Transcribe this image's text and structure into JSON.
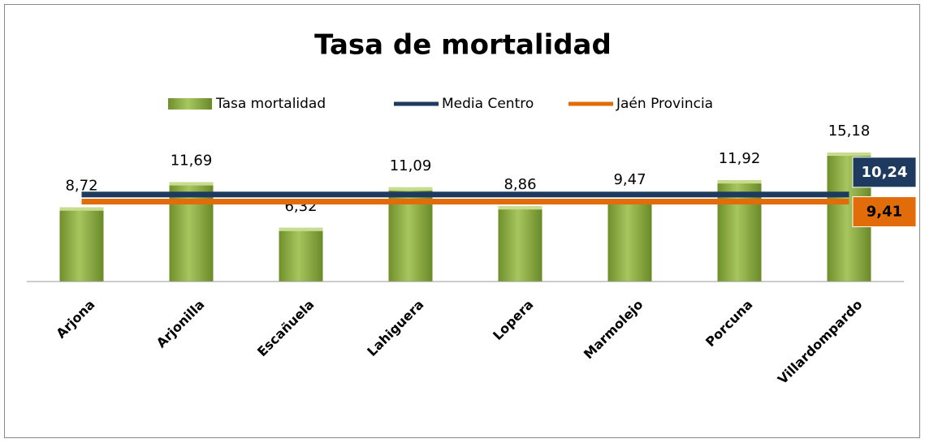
{
  "chart_data": {
    "type": "bar",
    "title": "Tasa de mortalidad",
    "categories": [
      "Arjona",
      "Arjonilla",
      "Escañuela",
      "Lahiguera",
      "Lopera",
      "Marmolejo",
      "Porcuna",
      "Villardompardo"
    ],
    "ylim": [
      0,
      16
    ],
    "series": [
      {
        "name": "Tasa mortalidad",
        "type": "bar",
        "color": "#8db040",
        "values": [
          8.72,
          11.69,
          6.32,
          11.09,
          8.86,
          9.47,
          11.92,
          15.18
        ],
        "value_labels": [
          "8,72",
          "11,69",
          "6,32",
          "11,09",
          "8,86",
          "9,47",
          "11,92",
          "15,18"
        ]
      },
      {
        "name": "Media Centro",
        "type": "line",
        "color": "#1f3a5f",
        "values": [
          10.24,
          10.24,
          10.24,
          10.24,
          10.24,
          10.24,
          10.24,
          10.24
        ],
        "value_labels": [
          null,
          null,
          null,
          null,
          null,
          null,
          null,
          "10,24"
        ]
      },
      {
        "name": "Jaén Provincia",
        "type": "line",
        "color": "#e36c0a",
        "values": [
          9.41,
          9.41,
          9.41,
          9.41,
          9.41,
          9.41,
          9.41,
          9.41
        ],
        "value_labels": [
          null,
          null,
          null,
          null,
          null,
          null,
          null,
          "9,41"
        ]
      }
    ]
  }
}
